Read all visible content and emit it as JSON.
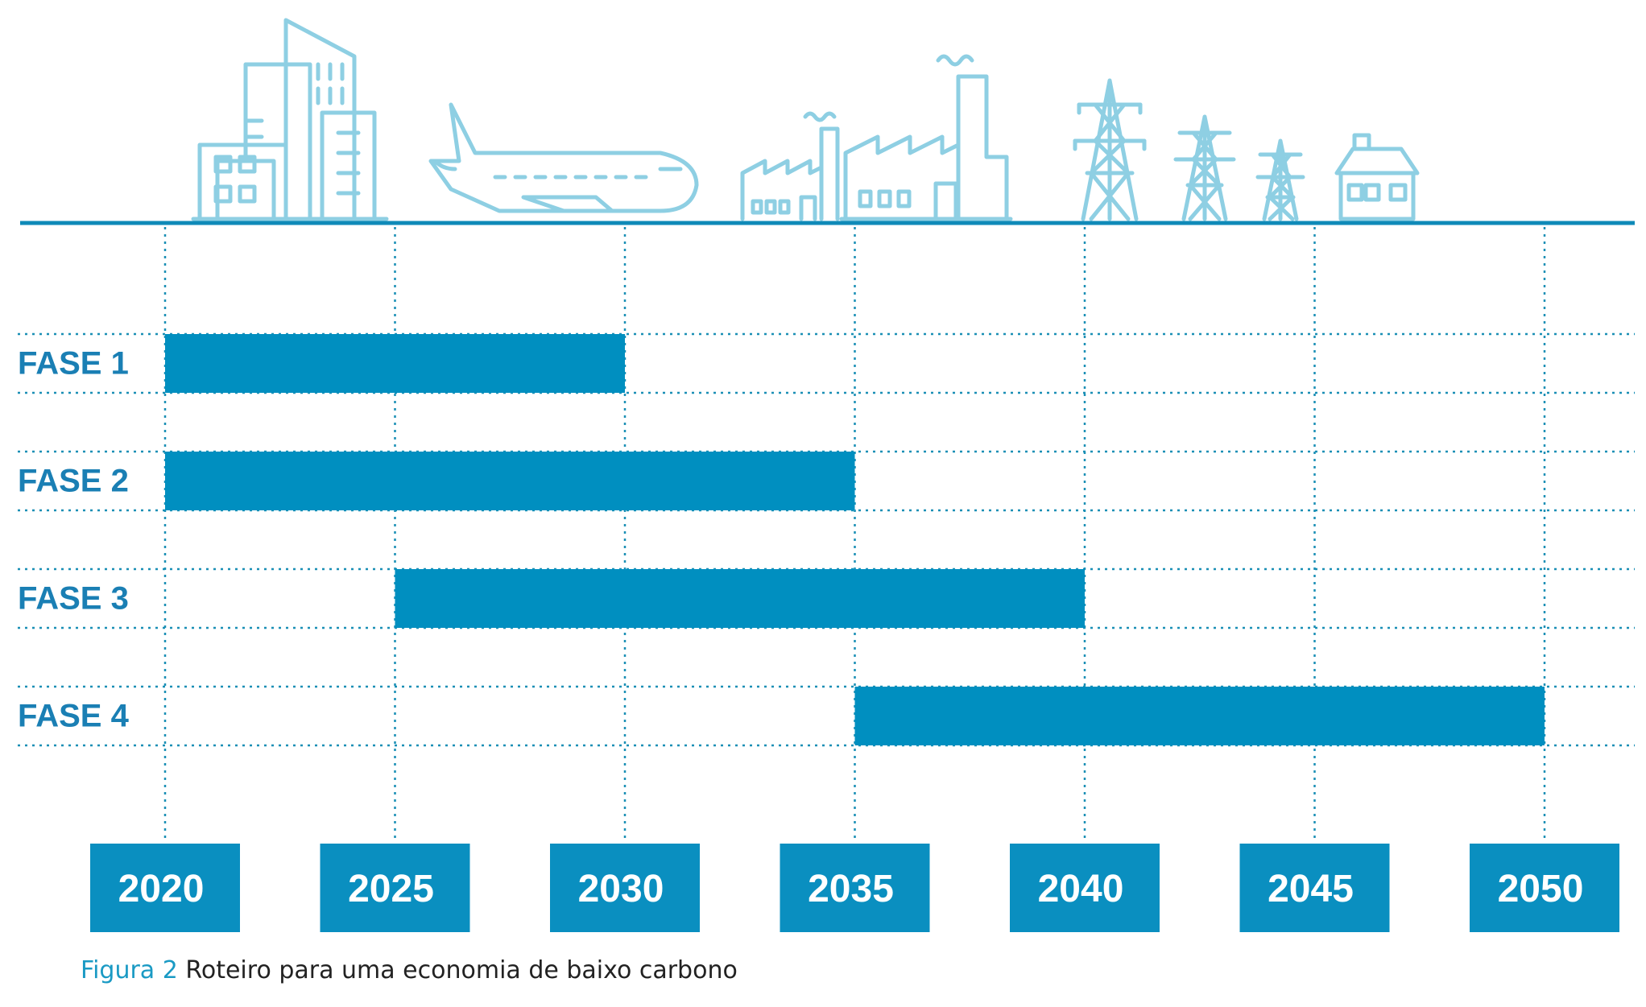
{
  "colors": {
    "bar": "#008fc0",
    "label": "#1a7fb4",
    "grid": "#1a8fb5",
    "baseline": "#0f8ab8",
    "icon": "#8ecfe3",
    "year_box": "#0a8fc0",
    "year_text": "#ffffff",
    "caption_prefix": "#1a9ac4",
    "caption_text": "#222222"
  },
  "icons": [
    "buildings-icon",
    "airplane-icon",
    "factory-small-icon",
    "factory-large-icon",
    "power-tower-large-icon",
    "power-tower-medium-icon",
    "power-tower-small-icon",
    "house-icon"
  ],
  "chart_data": {
    "type": "gantt",
    "title": "",
    "xlabel": "",
    "ylabel": "",
    "xlim": [
      2020,
      2050
    ],
    "ticks": [
      "2020",
      "2025",
      "2030",
      "2035",
      "2040",
      "2045",
      "2050"
    ],
    "grid": true,
    "categories": [
      "FASE 1",
      "FASE 2",
      "FASE 3",
      "FASE 4"
    ],
    "bars": [
      {
        "label": "FASE 1",
        "start": 2020,
        "end": 2030
      },
      {
        "label": "FASE 2",
        "start": 2020,
        "end": 2035
      },
      {
        "label": "FASE 3",
        "start": 2025,
        "end": 2040
      },
      {
        "label": "FASE 4",
        "start": 2035,
        "end": 2050
      }
    ]
  },
  "caption": {
    "prefix": "Figura 2",
    "text": "Roteiro para uma economia de baixo carbono"
  }
}
